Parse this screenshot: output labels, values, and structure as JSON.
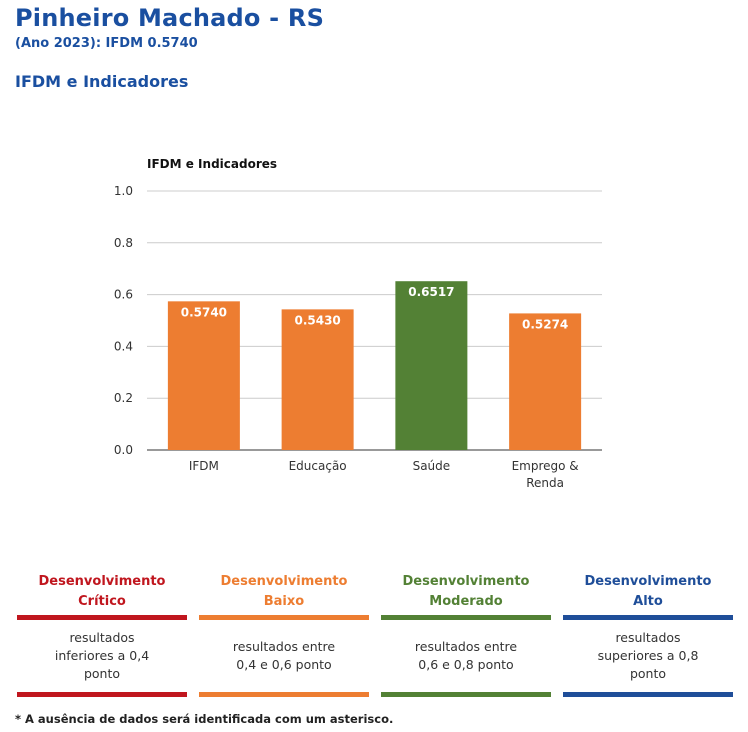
{
  "header": {
    "title": "Pinheiro Machado - RS",
    "subtitle": "(Ano 2023): IFDM 0.5740",
    "section": "IFDM e Indicadores"
  },
  "chart_data": {
    "type": "bar",
    "title": "IFDM e Indicadores",
    "categories": [
      [
        "IFDM"
      ],
      [
        "Educação"
      ],
      [
        "Saúde"
      ],
      [
        "Emprego &",
        "Renda"
      ]
    ],
    "values": [
      0.574,
      0.543,
      0.6517,
      0.5274
    ],
    "value_labels": [
      "0.5740",
      "0.5430",
      "0.6517",
      "0.5274"
    ],
    "colors": [
      "#ed7d31",
      "#ed7d31",
      "#538135",
      "#ed7d31"
    ],
    "ylim": [
      0,
      1
    ],
    "yticks": [
      "0.0",
      "0.2",
      "0.4",
      "0.6",
      "0.8",
      "1.0"
    ],
    "grid": true
  },
  "legend": [
    {
      "title1": "Desenvolvimento",
      "title2": "Crítico",
      "desc": "resultados inferiores a 0,4 ponto",
      "color": "#c0161e"
    },
    {
      "title1": "Desenvolvimento",
      "title2": "Baixo",
      "desc": "resultados entre 0,4 e 0,6 ponto",
      "color": "#ed7d31"
    },
    {
      "title1": "Desenvolvimento",
      "title2": "Moderado",
      "desc": "resultados entre 0,6 e 0,8 ponto",
      "color": "#538135"
    },
    {
      "title1": "Desenvolvimento",
      "title2": "Alto",
      "desc": "resultados superiores a 0,8 ponto",
      "color": "#1f4e99"
    }
  ],
  "footnote": "* A ausência de dados será identificada com um asterisco."
}
